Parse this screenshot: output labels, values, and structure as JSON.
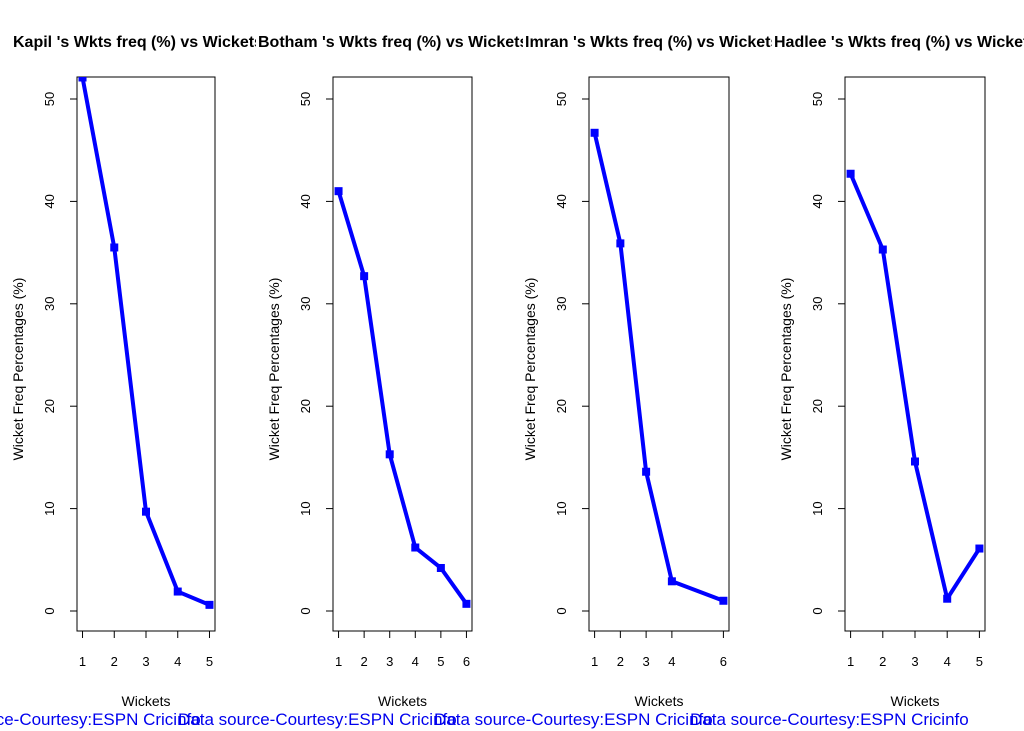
{
  "chart_data": [
    {
      "type": "line",
      "title": "Kapil 's Wkts freq (%) vs Wickets",
      "xlabel": "Wickets",
      "ylabel": "Wicket Freq Percentages (%)",
      "x": [
        1,
        2,
        3,
        4,
        5
      ],
      "values": [
        52.1,
        35.5,
        9.7,
        1.9,
        0.6
      ],
      "xticks": [
        "1",
        "2",
        "3",
        "4",
        "5"
      ],
      "xlim": [
        1,
        5
      ],
      "ylim": [
        0,
        52
      ],
      "yticks": [
        "0",
        "10",
        "20",
        "30",
        "40",
        "50"
      ],
      "color": "#0000ff",
      "credit": "Data source-Courtesy:ESPN Cricinfo"
    },
    {
      "type": "line",
      "title": "Botham 's Wkts freq (%) vs Wickets",
      "xlabel": "Wickets",
      "ylabel": "Wicket Freq Percentages (%)",
      "x": [
        1,
        2,
        3,
        4,
        5,
        6
      ],
      "values": [
        41.0,
        32.7,
        15.3,
        6.2,
        4.2,
        0.7
      ],
      "xticks": [
        "1",
        "2",
        "3",
        "4",
        "5",
        "6"
      ],
      "xlim": [
        1,
        6
      ],
      "ylim": [
        0,
        52
      ],
      "yticks": [
        "0",
        "10",
        "20",
        "30",
        "40",
        "50"
      ],
      "color": "#0000ff",
      "credit": "Data source-Courtesy:ESPN Cricinfo"
    },
    {
      "type": "line",
      "title": "Imran 's Wkts freq (%) vs Wickets",
      "xlabel": "Wickets",
      "ylabel": "Wicket Freq Percentages (%)",
      "x": [
        1,
        2,
        3,
        4,
        6
      ],
      "values": [
        46.7,
        35.9,
        13.6,
        2.9,
        1.0
      ],
      "xticks": [
        "1",
        "2",
        "3",
        "4",
        "6"
      ],
      "xlim": [
        1,
        6
      ],
      "ylim": [
        0,
        52
      ],
      "yticks": [
        "0",
        "10",
        "20",
        "30",
        "40",
        "50"
      ],
      "color": "#0000ff",
      "credit": "Data source-Courtesy:ESPN Cricinfo"
    },
    {
      "type": "line",
      "title": "Hadlee 's Wkts freq (%) vs Wickets",
      "xlabel": "Wickets",
      "ylabel": "Wicket Freq Percentages (%)",
      "x": [
        1,
        2,
        3,
        4,
        5
      ],
      "values": [
        42.7,
        35.3,
        14.6,
        1.2,
        6.1
      ],
      "xticks": [
        "1",
        "2",
        "3",
        "4",
        "5"
      ],
      "xlim": [
        1,
        5
      ],
      "ylim": [
        0,
        52
      ],
      "yticks": [
        "0",
        "10",
        "20",
        "30",
        "40",
        "50"
      ],
      "color": "#0000ff",
      "credit": "Data source-Courtesy:ESPN Cricinfo"
    }
  ]
}
